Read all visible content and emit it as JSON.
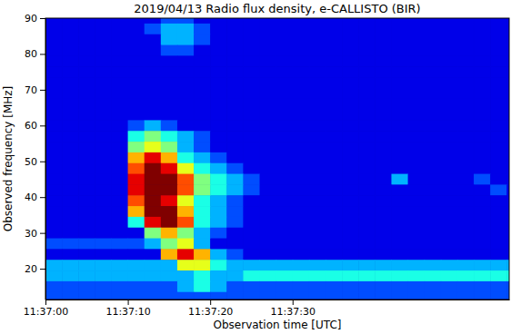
{
  "chart_data": {
    "type": "heatmap",
    "title": "2019/04/13  Radio flux density, e-CALLISTO (BIR)",
    "x_label": "Observation time [UTC]",
    "y_label": "Observed frequency [MHz]",
    "color": "jet",
    "xlim": [
      0,
      56.3
    ],
    "ylim": [
      11.4,
      90
    ],
    "xticks": [
      {
        "value": 0,
        "label": "11:37:00"
      },
      {
        "value": 10,
        "label": "11:37:10"
      },
      {
        "value": 20,
        "label": "11:37:20"
      },
      {
        "value": 30,
        "label": "11:37:30"
      }
    ],
    "yticks": [
      20,
      30,
      40,
      50,
      60,
      70,
      80,
      90
    ],
    "zlim": [
      0,
      10
    ],
    "x": [
      1,
      3,
      5,
      7,
      9,
      11,
      13,
      15,
      17,
      19,
      21,
      23,
      25,
      27,
      29,
      31,
      33,
      35,
      37,
      39,
      41,
      43,
      45,
      47,
      49,
      51,
      53,
      55,
      57
    ],
    "y": [
      90,
      87,
      84,
      81,
      78,
      75,
      72,
      69,
      66,
      63,
      60,
      57,
      54,
      51,
      48,
      45,
      42,
      39,
      36,
      33,
      30,
      27,
      24,
      21,
      18,
      15,
      12
    ],
    "z": [
      [
        1,
        1,
        1,
        1,
        1,
        1,
        1,
        2,
        2,
        1,
        1,
        1,
        1,
        1,
        1,
        1,
        1,
        1,
        1,
        1,
        1,
        1,
        1,
        1,
        1,
        1,
        1,
        1,
        1
      ],
      [
        1,
        1,
        1,
        1,
        1,
        1,
        2,
        3,
        3,
        2,
        1,
        1,
        1,
        1,
        1,
        1,
        1,
        1,
        1,
        1,
        1,
        1,
        1,
        1,
        1,
        1,
        1,
        1,
        1
      ],
      [
        1,
        1,
        1,
        1,
        1,
        1,
        1,
        3,
        3,
        2,
        1,
        1,
        1,
        1,
        1,
        1,
        1,
        1,
        1,
        1,
        1,
        1,
        1,
        1,
        1,
        1,
        1,
        1,
        1
      ],
      [
        1,
        1,
        1,
        1,
        1,
        1,
        1,
        2,
        2,
        1,
        1,
        1,
        1,
        1,
        1,
        1,
        1,
        1,
        1,
        1,
        1,
        1,
        1,
        1,
        1,
        1,
        1,
        1,
        1
      ],
      [
        1,
        1,
        1,
        1,
        1,
        1,
        1,
        1,
        1,
        1,
        1,
        1,
        1,
        1,
        1,
        1,
        1,
        1,
        1,
        1,
        1,
        1,
        1,
        1,
        1,
        1,
        1,
        1,
        1
      ],
      [
        1,
        1,
        1,
        1,
        1,
        1,
        1,
        1,
        1,
        1,
        1,
        1,
        1,
        1,
        1,
        1,
        1,
        1,
        1,
        1,
        1,
        1,
        1,
        1,
        1,
        1,
        1,
        1,
        1
      ],
      [
        1,
        1,
        1,
        1,
        1,
        1,
        1,
        1,
        1,
        1,
        1,
        1,
        1,
        1,
        1,
        1,
        1,
        1,
        1,
        1,
        1,
        1,
        1,
        1,
        1,
        1,
        1,
        1,
        1
      ],
      [
        1,
        1,
        1,
        1,
        1,
        1,
        1,
        1,
        1,
        1,
        1,
        1,
        1,
        1,
        1,
        1,
        1,
        1,
        1,
        1,
        1,
        1,
        1,
        1,
        1,
        1,
        1,
        1,
        1
      ],
      [
        1,
        1,
        1,
        1,
        1,
        1,
        1,
        1,
        1,
        1,
        1,
        1,
        1,
        1,
        1,
        1,
        1,
        1,
        1,
        1,
        1,
        1,
        1,
        1,
        1,
        1,
        1,
        1,
        1
      ],
      [
        1,
        1,
        1,
        1,
        1,
        1,
        1,
        1,
        1,
        1,
        1,
        1,
        1,
        1,
        1,
        1,
        1,
        1,
        1,
        1,
        1,
        1,
        1,
        1,
        1,
        1,
        1,
        1,
        1
      ],
      [
        1,
        1,
        1,
        1,
        1,
        2,
        3,
        2,
        1,
        1,
        1,
        1,
        1,
        1,
        1,
        1,
        1,
        1,
        1,
        1,
        1,
        1,
        1,
        1,
        1,
        1,
        1,
        1,
        1
      ],
      [
        1,
        1,
        1,
        1,
        1,
        4,
        5,
        4,
        3,
        2,
        1,
        1,
        1,
        1,
        1,
        1,
        1,
        1,
        1,
        1,
        1,
        1,
        1,
        1,
        1,
        1,
        1,
        1,
        1
      ],
      [
        1,
        1,
        1,
        1,
        1,
        5,
        6,
        5,
        3,
        2,
        1,
        1,
        1,
        1,
        1,
        1,
        1,
        1,
        1,
        1,
        1,
        1,
        1,
        1,
        1,
        1,
        1,
        1,
        1
      ],
      [
        1,
        1,
        1,
        1,
        1,
        7,
        9,
        7,
        4,
        3,
        2,
        1,
        1,
        1,
        1,
        1,
        1,
        1,
        1,
        1,
        1,
        1,
        1,
        1,
        1,
        1,
        1,
        1,
        1
      ],
      [
        1,
        1,
        1,
        1,
        1,
        8,
        10,
        9,
        6,
        4,
        3,
        2,
        1,
        1,
        1,
        1,
        1,
        1,
        1,
        1,
        1,
        1,
        1,
        1,
        1,
        1,
        1,
        1,
        1
      ],
      [
        1,
        1,
        1,
        1,
        1,
        9,
        10,
        10,
        8,
        5,
        4,
        3,
        2,
        1,
        1,
        1,
        1,
        1,
        1,
        1,
        1,
        3,
        1,
        1,
        1,
        1,
        2,
        1,
        1
      ],
      [
        1,
        1,
        1,
        1,
        1,
        9,
        10,
        10,
        8,
        5,
        4,
        3,
        2,
        1,
        1,
        1,
        1,
        1,
        1,
        1,
        1,
        1,
        1,
        1,
        1,
        1,
        1,
        2,
        1
      ],
      [
        1,
        1,
        1,
        1,
        1,
        8,
        10,
        9,
        6,
        4,
        3,
        2,
        1,
        1,
        1,
        1,
        1,
        1,
        1,
        1,
        1,
        1,
        1,
        1,
        1,
        1,
        1,
        1,
        1
      ],
      [
        1,
        1,
        1,
        1,
        1,
        7,
        10,
        10,
        7,
        4,
        3,
        2,
        1,
        1,
        1,
        1,
        1,
        1,
        1,
        1,
        1,
        1,
        1,
        1,
        1,
        1,
        1,
        1,
        1
      ],
      [
        1,
        1,
        1,
        1,
        1,
        4,
        9,
        10,
        8,
        4,
        3,
        2,
        1,
        1,
        1,
        1,
        1,
        1,
        1,
        1,
        1,
        1,
        1,
        1,
        1,
        1,
        1,
        1,
        1
      ],
      [
        1,
        1,
        1,
        1,
        1,
        1,
        5,
        7,
        5,
        3,
        2,
        1,
        1,
        1,
        1,
        1,
        1,
        1,
        1,
        1,
        1,
        1,
        1,
        1,
        1,
        1,
        1,
        1,
        1
      ],
      [
        2,
        2,
        2,
        2,
        2,
        2,
        3,
        5,
        6,
        3,
        1,
        1,
        1,
        1,
        1,
        1,
        1,
        1,
        1,
        1,
        1,
        1,
        1,
        1,
        1,
        1,
        1,
        1,
        1
      ],
      [
        1,
        1,
        1,
        1,
        1,
        1,
        1,
        7,
        9,
        7,
        3,
        2,
        1,
        1,
        1,
        1,
        1,
        1,
        1,
        1,
        1,
        1,
        1,
        1,
        1,
        1,
        1,
        1,
        1
      ],
      [
        3,
        3,
        3,
        3,
        3,
        3,
        3,
        3,
        6,
        6,
        4,
        3,
        3,
        3,
        3,
        3,
        3,
        3,
        3,
        3,
        3,
        3,
        3,
        3,
        3,
        3,
        3,
        3,
        3
      ],
      [
        3,
        3,
        3,
        3,
        3,
        3,
        3,
        3,
        3,
        4,
        3,
        3,
        4,
        4,
        4,
        4,
        4,
        4,
        4,
        4,
        4,
        4,
        4,
        4,
        4,
        4,
        4,
        4,
        4
      ],
      [
        2,
        2,
        2,
        2,
        2,
        2,
        2,
        2,
        3,
        4,
        3,
        2,
        2,
        2,
        2,
        2,
        2,
        2,
        2,
        2,
        2,
        2,
        2,
        2,
        2,
        2,
        2,
        2,
        2
      ],
      [
        2,
        2,
        2,
        2,
        2,
        2,
        2,
        2,
        2,
        2,
        2,
        2,
        2,
        2,
        2,
        2,
        2,
        2,
        2,
        2,
        2,
        2,
        2,
        2,
        2,
        2,
        2,
        2,
        2
      ]
    ]
  }
}
